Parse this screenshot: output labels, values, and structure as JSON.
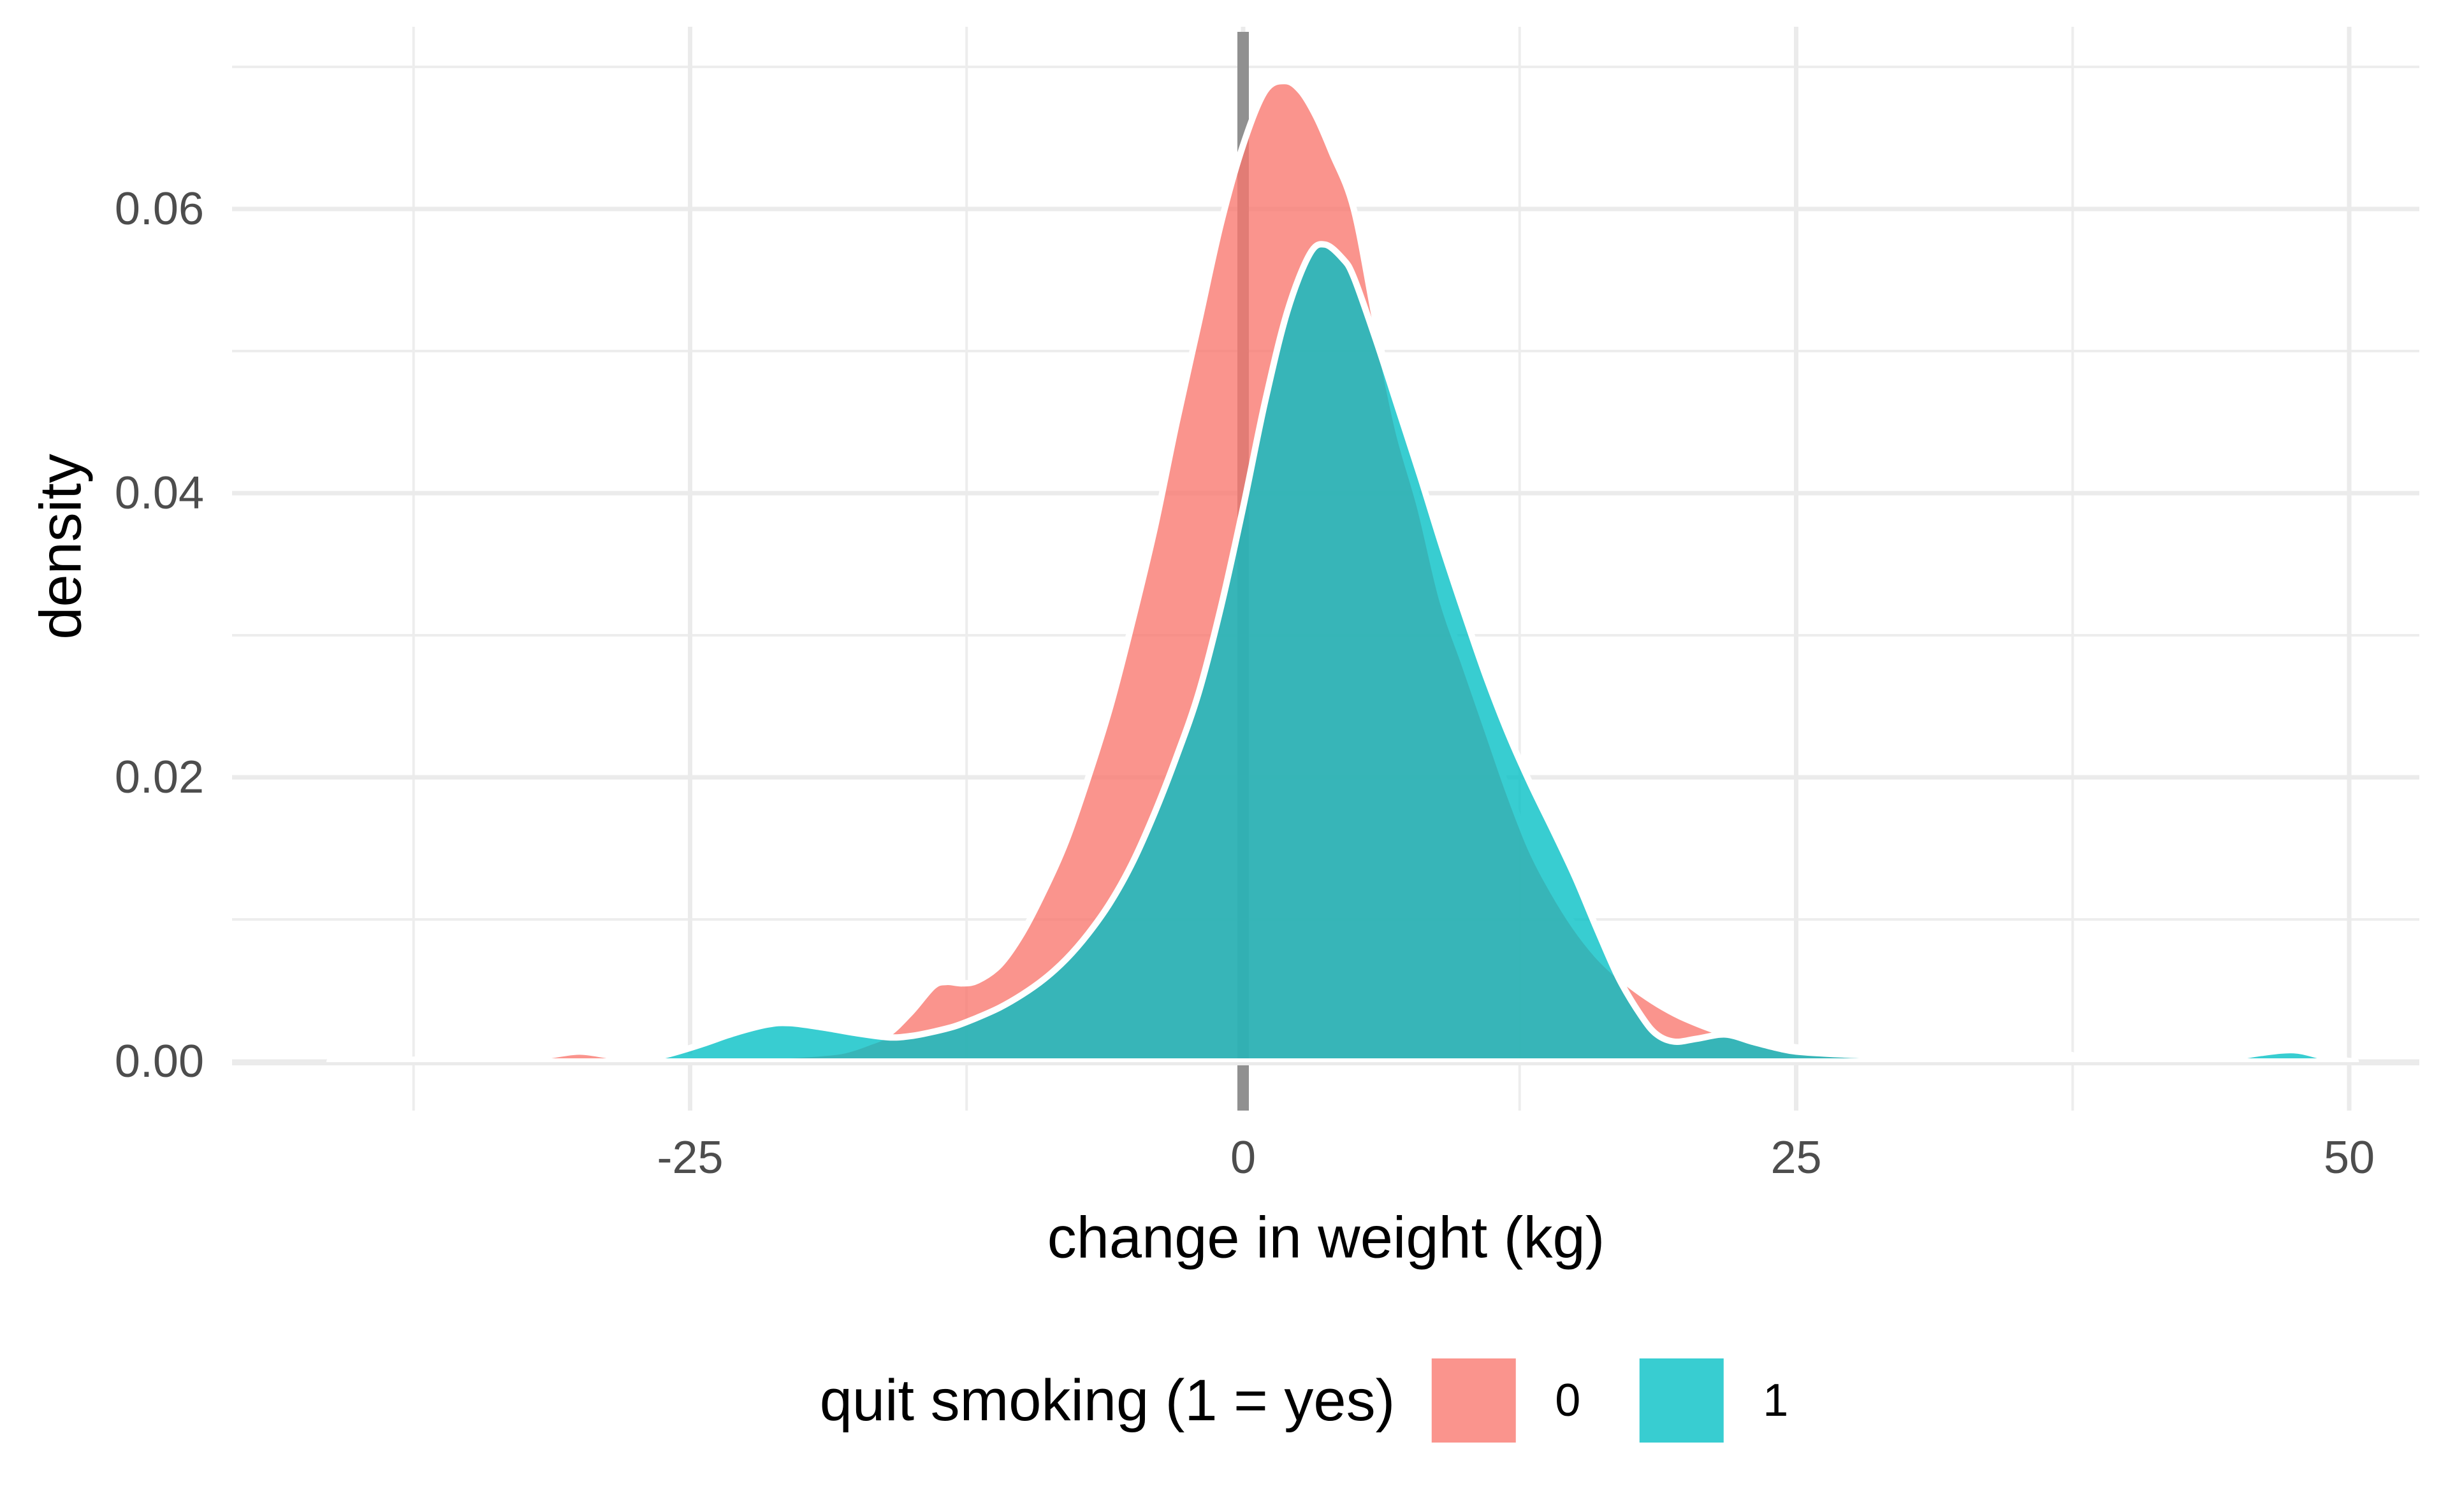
{
  "figure_kind": "ggplot-style overlapping density plot",
  "x_axis": {
    "title": "change in weight (kg)",
    "major_ticks": [
      -25,
      0,
      25,
      50
    ],
    "major_tick_labels": [
      "-25",
      "0",
      "25",
      "50"
    ],
    "minor_ticks": [
      -37.5,
      -12.5,
      12.5,
      37.5
    ],
    "range": [
      -45.7,
      53.2
    ]
  },
  "y_axis": {
    "title": "density",
    "major_ticks": [
      0,
      0.02,
      0.04,
      0.06
    ],
    "major_tick_labels": [
      "0.00",
      "0.02",
      "0.04",
      "0.06"
    ],
    "minor_ticks": [
      0.01,
      0.03,
      0.05,
      0.07
    ],
    "range": [
      -0.0035,
      0.0729
    ]
  },
  "reference_line": {
    "x": 0,
    "color": "#909090"
  },
  "colors": {
    "series_0_fill": "#F8766D",
    "series_1_fill": "#00BFC4",
    "fill_opacity": 0.78,
    "outline": "#FFFFFF",
    "grid_major": "#EBEBEB",
    "grid_minor": "#EDEDED",
    "tick_label": "#4D4D4D",
    "title_text": "#000000",
    "background": "#FFFFFF"
  },
  "legend": {
    "title": "quit smoking (1 = yes)",
    "items": [
      {
        "label": "0",
        "color": "#F8766D"
      },
      {
        "label": "1",
        "color": "#00BFC4"
      }
    ]
  },
  "chart_data": {
    "type": "area",
    "subtype": "kernel-density",
    "title": "",
    "xlabel": "change in weight (kg)",
    "ylabel": "density",
    "xlim": [
      -45.7,
      53.2
    ],
    "ylim": [
      -0.0035,
      0.0729
    ],
    "grid": true,
    "legend_position": "bottom",
    "series": [
      {
        "name": "0",
        "color": "#F8766D",
        "peak": {
          "x": 1.9,
          "density": 0.069
        },
        "points": [
          [
            -41.3,
            0
          ],
          [
            -39,
            0.0001
          ],
          [
            -36,
            0.00015
          ],
          [
            -33,
            0.0002
          ],
          [
            -31.5,
            0.0004
          ],
          [
            -30,
            0.0007
          ],
          [
            -28.5,
            0.0004
          ],
          [
            -27,
            0.0003
          ],
          [
            -25,
            0.00028
          ],
          [
            -23,
            0.0003
          ],
          [
            -21,
            0.0004
          ],
          [
            -19,
            0.0006
          ],
          [
            -18,
            0.0008
          ],
          [
            -17,
            0.0013
          ],
          [
            -16,
            0.002
          ],
          [
            -15,
            0.0035
          ],
          [
            -14,
            0.0053
          ],
          [
            -13.4,
            0.0056
          ],
          [
            -12.7,
            0.0055
          ],
          [
            -12,
            0.0057
          ],
          [
            -11,
            0.0068
          ],
          [
            -10,
            0.009
          ],
          [
            -9,
            0.012
          ],
          [
            -8,
            0.0155
          ],
          [
            -7,
            0.02
          ],
          [
            -6,
            0.025
          ],
          [
            -5,
            0.031
          ],
          [
            -4,
            0.0375
          ],
          [
            -3,
            0.045
          ],
          [
            -2,
            0.052
          ],
          [
            -1,
            0.059
          ],
          [
            0,
            0.0645
          ],
          [
            1,
            0.0683
          ],
          [
            1.9,
            0.069
          ],
          [
            2.6,
            0.0683
          ],
          [
            3.3,
            0.0665
          ],
          [
            4,
            0.064
          ],
          [
            5,
            0.06
          ],
          [
            6,
            0.052
          ],
          [
            7,
            0.0445
          ],
          [
            8,
            0.039
          ],
          [
            9,
            0.0325
          ],
          [
            10,
            0.028
          ],
          [
            11,
            0.0235
          ],
          [
            12,
            0.019
          ],
          [
            13,
            0.015
          ],
          [
            14,
            0.012
          ],
          [
            15,
            0.0095
          ],
          [
            16,
            0.0075
          ],
          [
            17,
            0.006
          ],
          [
            18,
            0.0048
          ],
          [
            19,
            0.0038
          ],
          [
            20,
            0.003
          ],
          [
            21.5,
            0.0021
          ],
          [
            23,
            0.0015
          ],
          [
            25,
            0.001
          ],
          [
            27,
            0.0007
          ],
          [
            29,
            0.0005
          ],
          [
            31,
            0.0003
          ],
          [
            33,
            0.0002
          ],
          [
            35,
            0.00015
          ],
          [
            36.2,
            0.0003
          ],
          [
            37.2,
            0.0005
          ],
          [
            38.2,
            0.0002
          ],
          [
            39.5,
            5e-05
          ],
          [
            41,
            0
          ]
        ]
      },
      {
        "name": "1",
        "color": "#00BFC4",
        "peak": {
          "x": 3.7,
          "density": 0.0575
        },
        "points": [
          [
            -27.5,
            0
          ],
          [
            -26,
            0.0005
          ],
          [
            -24.5,
            0.0012
          ],
          [
            -23,
            0.002
          ],
          [
            -21.5,
            0.0026
          ],
          [
            -20.5,
            0.0027
          ],
          [
            -19,
            0.0024
          ],
          [
            -17.5,
            0.002
          ],
          [
            -16,
            0.0017
          ],
          [
            -15,
            0.0018
          ],
          [
            -14,
            0.0021
          ],
          [
            -13,
            0.0025
          ],
          [
            -12,
            0.0031
          ],
          [
            -11,
            0.0038
          ],
          [
            -10,
            0.0047
          ],
          [
            -9,
            0.0058
          ],
          [
            -8,
            0.0072
          ],
          [
            -7,
            0.009
          ],
          [
            -6,
            0.0112
          ],
          [
            -5,
            0.014
          ],
          [
            -4,
            0.0175
          ],
          [
            -3,
            0.0215
          ],
          [
            -2,
            0.026
          ],
          [
            -1,
            0.032
          ],
          [
            0,
            0.039
          ],
          [
            1,
            0.0465
          ],
          [
            2,
            0.0528
          ],
          [
            3,
            0.0568
          ],
          [
            3.7,
            0.0575
          ],
          [
            4.5,
            0.0565
          ],
          [
            5,
            0.0552
          ],
          [
            6,
            0.0508
          ],
          [
            7,
            0.046
          ],
          [
            8,
            0.0412
          ],
          [
            9,
            0.0362
          ],
          [
            10,
            0.0315
          ],
          [
            11,
            0.027
          ],
          [
            12,
            0.023
          ],
          [
            13,
            0.0195
          ],
          [
            14,
            0.0163
          ],
          [
            15,
            0.013
          ],
          [
            16,
            0.0093
          ],
          [
            17,
            0.0058
          ],
          [
            18,
            0.0032
          ],
          [
            18.7,
            0.0019
          ],
          [
            19.5,
            0.0014
          ],
          [
            20.5,
            0.0016
          ],
          [
            21.8,
            0.0019
          ],
          [
            23,
            0.0014
          ],
          [
            24,
            0.001
          ],
          [
            25,
            0.0007
          ],
          [
            27,
            0.0005
          ],
          [
            29,
            0.0004
          ],
          [
            31,
            0.00035
          ],
          [
            33,
            0.0004
          ],
          [
            34.5,
            0.00035
          ],
          [
            36,
            0.0002
          ],
          [
            37.5,
            8e-05
          ],
          [
            38.5,
            0
          ],
          [
            40,
            0
          ],
          [
            42,
            0
          ],
          [
            43.5,
            0
          ],
          [
            44.5,
            0.0002
          ],
          [
            46,
            0.0006
          ],
          [
            47.5,
            0.0008
          ],
          [
            48.7,
            0.0004
          ],
          [
            49.7,
            0.0001
          ],
          [
            50.3,
            0
          ]
        ]
      }
    ]
  }
}
